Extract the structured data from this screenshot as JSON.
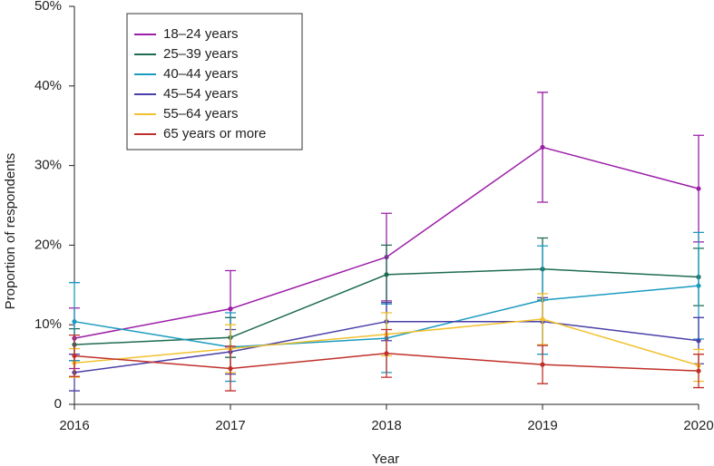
{
  "chart_data": {
    "type": "line",
    "x_label": "Year",
    "y_label": "Proportion of respondents",
    "x": [
      2016,
      2017,
      2018,
      2019,
      2020
    ],
    "xlim": [
      2016,
      2020
    ],
    "xticks": [
      2016,
      2017,
      2018,
      2019,
      2020
    ],
    "ylim": [
      0,
      50
    ],
    "yticks": [
      0,
      {
        "value": 10,
        "label": "10%"
      },
      {
        "value": 20,
        "label": "20%"
      },
      {
        "value": 30,
        "label": "30%"
      },
      {
        "value": 40,
        "label": "40%"
      },
      {
        "value": 50,
        "label": "50%"
      }
    ],
    "legend": "upper-left",
    "series": [
      {
        "name": "18–24 years",
        "color": "#9b1fa8",
        "values": [
          8.3,
          12.0,
          18.5,
          32.3,
          27.1
        ],
        "errors": [
          3.8,
          4.8,
          5.5,
          6.9,
          6.7
        ]
      },
      {
        "name": "25–39 years",
        "color": "#1e6b52",
        "values": [
          7.5,
          8.4,
          16.3,
          17.0,
          16.0
        ],
        "errors": [
          2.0,
          2.5,
          3.7,
          3.9,
          3.6
        ]
      },
      {
        "name": "40–44 years",
        "color": "#1a9bc0",
        "values": [
          10.4,
          7.2,
          8.3,
          13.1,
          14.9
        ],
        "errors": [
          4.9,
          4.3,
          4.3,
          6.8,
          6.7
        ]
      },
      {
        "name": "45–54 years",
        "color": "#4a3fa8",
        "values": [
          4.0,
          6.6,
          10.4,
          10.4,
          8.0
        ],
        "errors": [
          2.3,
          2.8,
          2.4,
          3.0,
          2.9
        ]
      },
      {
        "name": "55–64 years",
        "color": "#f2c12e",
        "values": [
          5.2,
          7.0,
          8.8,
          10.7,
          4.9
        ],
        "errors": [
          1.8,
          3.0,
          2.7,
          3.2,
          2.0
        ]
      },
      {
        "name": "65 years or  more",
        "color": "#c0302a",
        "values": [
          6.1,
          4.5,
          6.4,
          5.0,
          4.2
        ],
        "errors": [
          2.6,
          2.8,
          3.0,
          2.4,
          2.1
        ]
      }
    ]
  }
}
